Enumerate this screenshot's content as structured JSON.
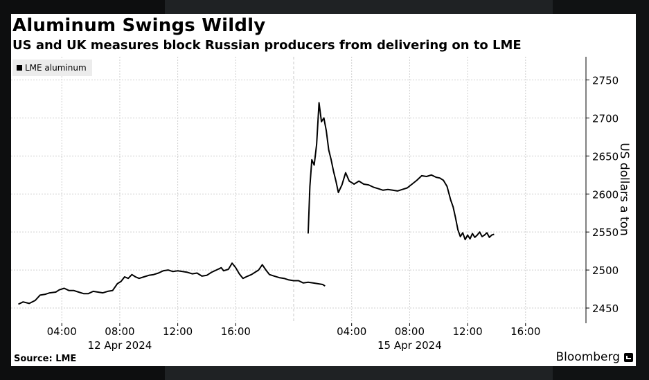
{
  "title": "Aluminum Swings Wildly",
  "subtitle": "US and UK measures block Russian producers from delivering on to LME",
  "source": "Source: LME",
  "brand": "Bloomberg",
  "brand_icon": "bloomberg-terminal-icon",
  "chart_data": {
    "type": "line",
    "title": "Aluminum Swings Wildly",
    "subtitle": "US and UK measures block Russian producers from delivering on to LME",
    "ylabel": "US dollars a ton",
    "ylim": [
      2430,
      2755
    ],
    "y_ticks": [
      2450,
      2500,
      2550,
      2600,
      2650,
      2700,
      2750
    ],
    "y_axis_side": "right",
    "grid": true,
    "legend": {
      "position": "top-left",
      "entries": [
        "LME aluminum"
      ]
    },
    "line_color": "#000000",
    "panels": [
      {
        "date_label": "12 Apr 2024",
        "x_start_hour": 0.5,
        "x_end_hour": 20.0,
        "x_ticks": [
          "04:00",
          "08:00",
          "12:00",
          "16:00"
        ]
      },
      {
        "date_label": "15 Apr 2024",
        "x_start_hour": 0.0,
        "x_end_hour": 19.5,
        "x_ticks": [
          "04:00",
          "08:00",
          "12:00",
          "16:00"
        ]
      }
    ],
    "series": [
      {
        "name": "LME aluminum",
        "segments": [
          {
            "date": "12 Apr 2024",
            "points": [
              [
                "01:00",
                2455
              ],
              [
                "01:20",
                2458
              ],
              [
                "01:45",
                2456
              ],
              [
                "02:10",
                2460
              ],
              [
                "02:30",
                2467
              ],
              [
                "02:50",
                2468
              ],
              [
                "03:10",
                2470
              ],
              [
                "03:35",
                2471
              ],
              [
                "03:50",
                2474
              ],
              [
                "04:10",
                2476
              ],
              [
                "04:30",
                2473
              ],
              [
                "04:50",
                2473
              ],
              [
                "05:10",
                2471
              ],
              [
                "05:30",
                2469
              ],
              [
                "05:50",
                2469
              ],
              [
                "06:10",
                2472
              ],
              [
                "06:30",
                2471
              ],
              [
                "06:50",
                2470
              ],
              [
                "07:10",
                2472
              ],
              [
                "07:30",
                2473
              ],
              [
                "07:50",
                2482
              ],
              [
                "08:05",
                2485
              ],
              [
                "08:20",
                2491
              ],
              [
                "08:35",
                2489
              ],
              [
                "08:50",
                2494
              ],
              [
                "09:05",
                2491
              ],
              [
                "09:20",
                2489
              ],
              [
                "09:40",
                2491
              ],
              [
                "10:00",
                2493
              ],
              [
                "10:20",
                2494
              ],
              [
                "10:40",
                2496
              ],
              [
                "11:00",
                2499
              ],
              [
                "11:20",
                2500
              ],
              [
                "11:40",
                2498
              ],
              [
                "12:00",
                2499
              ],
              [
                "12:20",
                2498
              ],
              [
                "12:40",
                2497
              ],
              [
                "13:00",
                2495
              ],
              [
                "13:20",
                2496
              ],
              [
                "13:40",
                2492
              ],
              [
                "14:00",
                2493
              ],
              [
                "14:20",
                2497
              ],
              [
                "14:40",
                2500
              ],
              [
                "15:00",
                2503
              ],
              [
                "15:10",
                2499
              ],
              [
                "15:30",
                2501
              ],
              [
                "15:45",
                2509
              ],
              [
                "16:00",
                2503
              ],
              [
                "16:15",
                2495
              ],
              [
                "16:30",
                2489
              ],
              [
                "16:50",
                2492
              ],
              [
                "17:05",
                2494
              ],
              [
                "17:20",
                2497
              ],
              [
                "17:35",
                2500
              ],
              [
                "17:50",
                2507
              ],
              [
                "18:05",
                2500
              ],
              [
                "18:20",
                2494
              ],
              [
                "18:40",
                2492
              ],
              [
                "19:00",
                2490
              ],
              [
                "19:20",
                2489
              ],
              [
                "19:40",
                2487
              ],
              [
                "20:00",
                2486
              ],
              [
                "20:20",
                2486
              ],
              [
                "20:40",
                2483
              ],
              [
                "21:00",
                2484
              ],
              [
                "21:20",
                2483
              ],
              [
                "21:40",
                2482
              ],
              [
                "22:00",
                2481
              ],
              [
                "22:10",
                2479
              ]
            ]
          },
          {
            "date": "15 Apr 2024",
            "points": [
              [
                "01:00",
                2548
              ],
              [
                "01:07",
                2610
              ],
              [
                "01:15",
                2645
              ],
              [
                "01:25",
                2638
              ],
              [
                "01:35",
                2665
              ],
              [
                "01:45",
                2720
              ],
              [
                "01:55",
                2695
              ],
              [
                "02:05",
                2700
              ],
              [
                "02:15",
                2683
              ],
              [
                "02:25",
                2658
              ],
              [
                "02:35",
                2645
              ],
              [
                "02:45",
                2630
              ],
              [
                "02:55",
                2617
              ],
              [
                "03:05",
                2602
              ],
              [
                "03:20",
                2612
              ],
              [
                "03:35",
                2628
              ],
              [
                "03:50",
                2617
              ],
              [
                "04:10",
                2613
              ],
              [
                "04:30",
                2617
              ],
              [
                "04:50",
                2613
              ],
              [
                "05:10",
                2612
              ],
              [
                "05:30",
                2609
              ],
              [
                "05:50",
                2607
              ],
              [
                "06:10",
                2605
              ],
              [
                "06:30",
                2606
              ],
              [
                "06:50",
                2605
              ],
              [
                "07:10",
                2604
              ],
              [
                "07:30",
                2606
              ],
              [
                "07:50",
                2608
              ],
              [
                "08:10",
                2613
              ],
              [
                "08:30",
                2618
              ],
              [
                "08:50",
                2624
              ],
              [
                "09:10",
                2623
              ],
              [
                "09:30",
                2625
              ],
              [
                "09:50",
                2622
              ],
              [
                "10:05",
                2621
              ],
              [
                "10:20",
                2618
              ],
              [
                "10:35",
                2610
              ],
              [
                "10:50",
                2592
              ],
              [
                "11:00",
                2583
              ],
              [
                "11:10",
                2569
              ],
              [
                "11:20",
                2553
              ],
              [
                "11:30",
                2544
              ],
              [
                "11:40",
                2549
              ],
              [
                "11:50",
                2540
              ],
              [
                "12:00",
                2546
              ],
              [
                "12:10",
                2541
              ],
              [
                "12:20",
                2548
              ],
              [
                "12:30",
                2543
              ],
              [
                "12:40",
                2546
              ],
              [
                "12:50",
                2550
              ],
              [
                "13:00",
                2544
              ],
              [
                "13:10",
                2546
              ],
              [
                "13:20",
                2549
              ],
              [
                "13:30",
                2543
              ],
              [
                "13:40",
                2546
              ],
              [
                "13:50",
                2547
              ]
            ]
          }
        ]
      }
    ]
  }
}
